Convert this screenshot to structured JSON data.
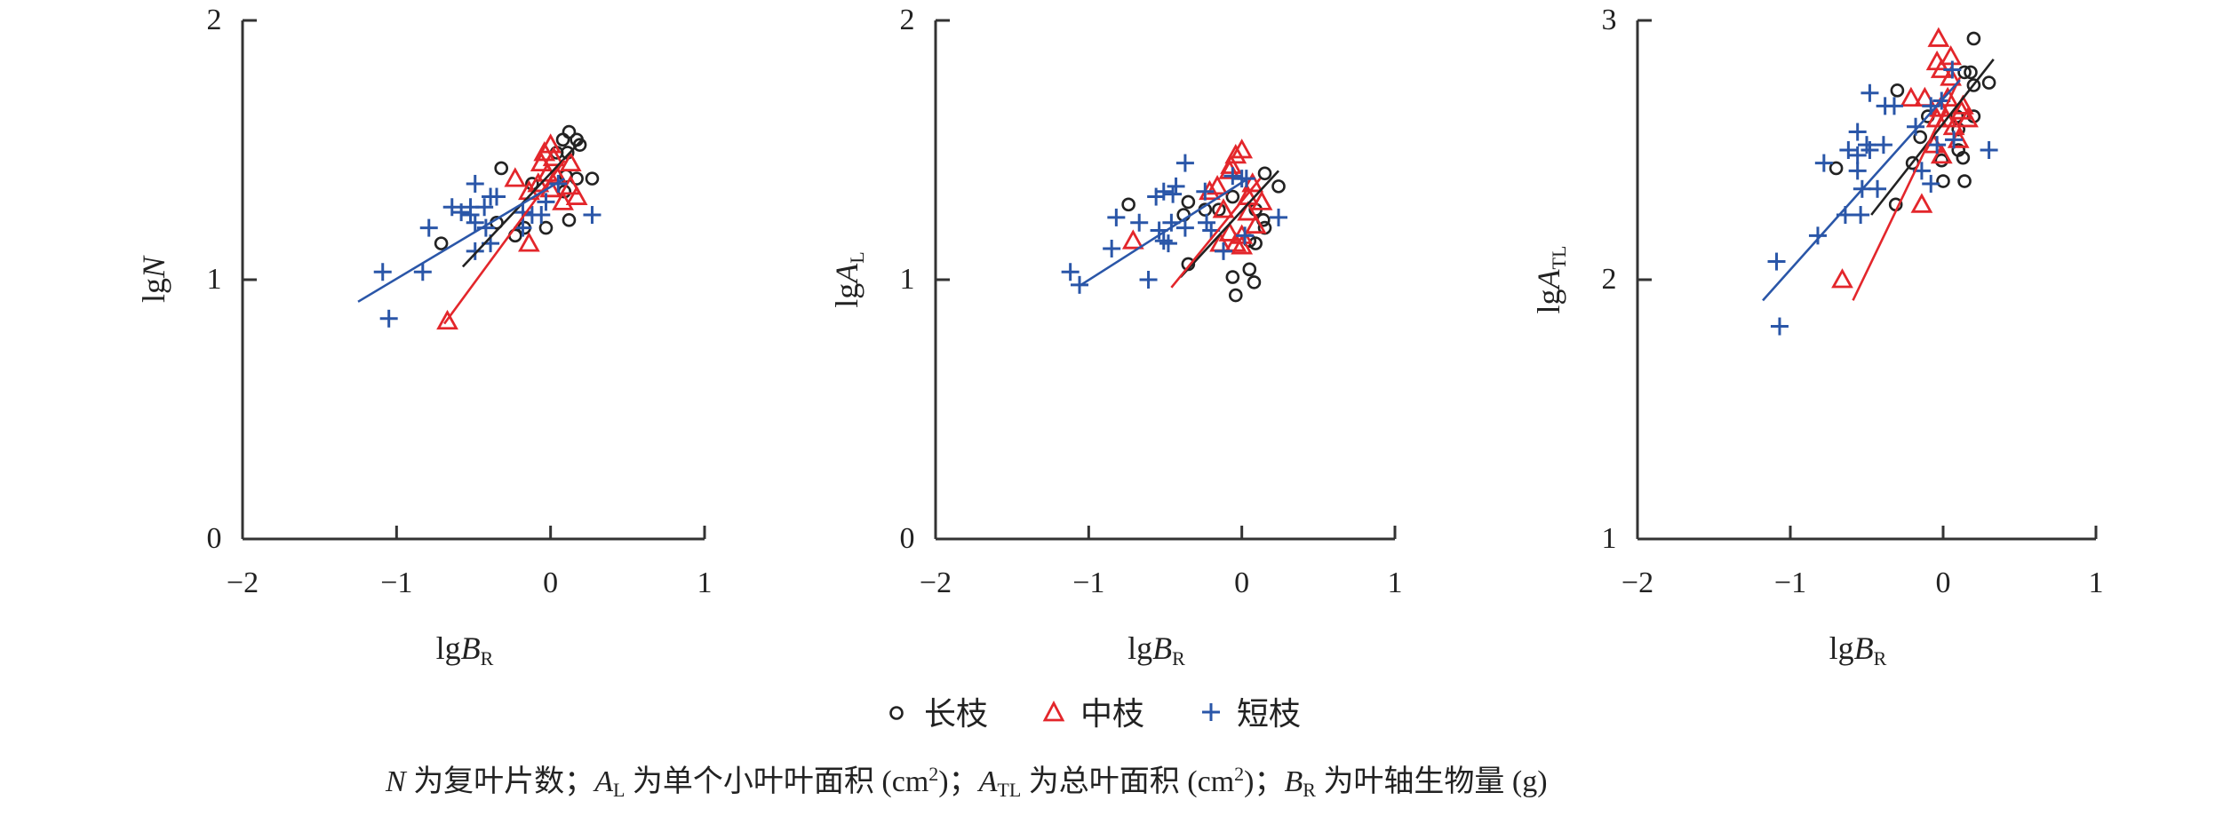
{
  "colors": {
    "long": "#222222",
    "mid": "#e3262b",
    "short": "#2a56a8",
    "axis": "#333333"
  },
  "legend": {
    "long": "长枝",
    "mid": "中枝",
    "short": "短枝"
  },
  "caption": {
    "n_var": "N",
    "n_text": " 为复叶片数；",
    "al_var": "A",
    "al_sub": "L",
    "al_text": " 为单个小叶叶面积 (cm",
    "al_sup": "2",
    "al_end": ")；",
    "atl_var": "A",
    "atl_sub": "TL",
    "atl_text": " 为总叶面积 (cm",
    "atl_sup": "2",
    "atl_end": ")；",
    "br_var": "B",
    "br_sub": "R",
    "br_text": " 为叶轴生物量 (g)"
  },
  "chart_data": [
    {
      "type": "scatter",
      "xlabel": {
        "prefix": "lg",
        "var": "B",
        "sub": "R"
      },
      "ylabel": {
        "prefix": "lg",
        "var": "N",
        "sub": ""
      },
      "xlim": [
        -2,
        1
      ],
      "ylim": [
        0,
        2
      ],
      "xticks": [
        "−2",
        "−1",
        "0",
        "1"
      ],
      "xtick_values": [
        -2,
        -1,
        0,
        1
      ],
      "yticks": [
        "0",
        "1",
        "2"
      ],
      "ytick_values": [
        0,
        1,
        2
      ],
      "series": [
        {
          "name": "长枝",
          "key": "long",
          "marker": "circle",
          "points": [
            [
              -0.32,
              1.43
            ],
            [
              -0.71,
              1.14
            ],
            [
              -0.35,
              1.22
            ],
            [
              -0.17,
              1.2
            ],
            [
              -0.23,
              1.17
            ],
            [
              -0.03,
              1.2
            ],
            [
              0.12,
              1.23
            ],
            [
              0.17,
              1.39
            ],
            [
              0.27,
              1.39
            ],
            [
              0.12,
              1.57
            ],
            [
              0.08,
              1.54
            ],
            [
              0.17,
              1.54
            ],
            [
              0.19,
              1.52
            ],
            [
              0.11,
              1.49
            ],
            [
              0.04,
              1.49
            ],
            [
              0.1,
              1.4
            ],
            [
              -0.12,
              1.37
            ],
            [
              0.09,
              1.34
            ]
          ],
          "fit": [
            [
              -0.57,
              1.05
            ],
            [
              0.205,
              1.54
            ]
          ]
        },
        {
          "name": "中枝",
          "key": "mid",
          "marker": "triangle",
          "points": [
            [
              -0.23,
              1.39
            ],
            [
              -0.14,
              1.14
            ],
            [
              -0.67,
              0.84
            ],
            [
              0.0,
              1.52
            ],
            [
              -0.04,
              1.49
            ],
            [
              0.02,
              1.47
            ],
            [
              -0.06,
              1.45
            ],
            [
              0.13,
              1.45
            ],
            [
              -0.02,
              1.41
            ],
            [
              0.04,
              1.4
            ],
            [
              -0.14,
              1.34
            ],
            [
              0.13,
              1.36
            ],
            [
              0.17,
              1.32
            ],
            [
              0.08,
              1.3
            ],
            [
              -0.08,
              1.37
            ],
            [
              0.0,
              1.35
            ]
          ],
          "fit": [
            [
              -0.69,
              0.83
            ],
            [
              0.09,
              1.46
            ]
          ]
        },
        {
          "name": "短枝",
          "key": "short",
          "marker": "plus",
          "points": [
            [
              -0.49,
              1.37
            ],
            [
              -0.39,
              1.32
            ],
            [
              -0.35,
              1.32
            ],
            [
              -0.64,
              1.28
            ],
            [
              -0.58,
              1.26
            ],
            [
              -0.52,
              1.28
            ],
            [
              -0.52,
              1.25
            ],
            [
              -0.43,
              1.28
            ],
            [
              -0.49,
              1.22
            ],
            [
              -0.42,
              1.2
            ],
            [
              -0.79,
              1.2
            ],
            [
              -0.18,
              1.26
            ],
            [
              -0.12,
              1.25
            ],
            [
              -0.06,
              1.25
            ],
            [
              -0.03,
              1.3
            ],
            [
              -0.18,
              1.2
            ],
            [
              -0.39,
              1.14
            ],
            [
              -0.49,
              1.11
            ],
            [
              -1.09,
              1.03
            ],
            [
              -0.83,
              1.03
            ],
            [
              -1.05,
              0.85
            ],
            [
              0.27,
              1.25
            ],
            [
              0.05,
              1.37
            ]
          ],
          "fit": [
            [
              -1.25,
              0.915
            ],
            [
              0.09,
              1.39
            ]
          ]
        }
      ]
    },
    {
      "type": "scatter",
      "xlabel": {
        "prefix": "lg",
        "var": "B",
        "sub": "R"
      },
      "ylabel": {
        "prefix": "lg",
        "var": "A",
        "sub": "L"
      },
      "xlim": [
        -2,
        1
      ],
      "ylim": [
        0,
        2
      ],
      "xticks": [
        "−2",
        "−1",
        "0",
        "1"
      ],
      "xtick_values": [
        -2,
        -1,
        0,
        1
      ],
      "yticks": [
        "0",
        "1",
        "2"
      ],
      "ytick_values": [
        0,
        1,
        2
      ],
      "series": [
        {
          "name": "长枝",
          "key": "long",
          "marker": "circle",
          "points": [
            [
              -0.74,
              1.29
            ],
            [
              -0.35,
              1.3
            ],
            [
              -0.38,
              1.25
            ],
            [
              -0.24,
              1.27
            ],
            [
              -0.15,
              1.27
            ],
            [
              -0.06,
              1.32
            ],
            [
              -0.35,
              1.06
            ],
            [
              0.15,
              1.41
            ],
            [
              0.24,
              1.36
            ],
            [
              0.09,
              1.27
            ],
            [
              0.14,
              1.23
            ],
            [
              0.15,
              1.2
            ],
            [
              0.05,
              1.15
            ],
            [
              0.09,
              1.14
            ],
            [
              0.05,
              1.04
            ],
            [
              -0.06,
              1.01
            ],
            [
              0.08,
              0.99
            ],
            [
              -0.04,
              0.94
            ]
          ],
          "fit": [
            [
              -0.4,
              1.01
            ],
            [
              0.24,
              1.42
            ]
          ]
        },
        {
          "name": "中枝",
          "key": "mid",
          "marker": "triangle",
          "points": [
            [
              -0.71,
              1.15
            ],
            [
              0.0,
              1.5
            ],
            [
              -0.04,
              1.48
            ],
            [
              -0.07,
              1.44
            ],
            [
              -0.08,
              1.42
            ],
            [
              -0.16,
              1.36
            ],
            [
              -0.21,
              1.34
            ],
            [
              0.07,
              1.37
            ],
            [
              0.04,
              1.32
            ],
            [
              0.13,
              1.3
            ],
            [
              -0.12,
              1.27
            ],
            [
              0.04,
              1.26
            ],
            [
              0.09,
              1.21
            ],
            [
              -0.08,
              1.18
            ],
            [
              0.0,
              1.17
            ],
            [
              -0.14,
              1.14
            ],
            [
              -0.04,
              1.14
            ],
            [
              0.0,
              1.13
            ]
          ],
          "fit": [
            [
              -0.46,
              0.97
            ],
            [
              0.12,
              1.39
            ]
          ]
        },
        {
          "name": "短枝",
          "key": "short",
          "marker": "plus",
          "points": [
            [
              -0.37,
              1.45
            ],
            [
              -1.12,
              1.03
            ],
            [
              -1.06,
              0.98
            ],
            [
              -0.85,
              1.12
            ],
            [
              -0.82,
              1.24
            ],
            [
              -0.67,
              1.22
            ],
            [
              -0.61,
              1.0
            ],
            [
              -0.56,
              1.32
            ],
            [
              -0.51,
              1.34
            ],
            [
              -0.45,
              1.33
            ],
            [
              -0.43,
              1.36
            ],
            [
              -0.54,
              1.19
            ],
            [
              -0.51,
              1.15
            ],
            [
              -0.48,
              1.14
            ],
            [
              -0.46,
              1.22
            ],
            [
              -0.37,
              1.2
            ],
            [
              -0.24,
              1.34
            ],
            [
              -0.23,
              1.22
            ],
            [
              -0.2,
              1.19
            ],
            [
              -0.12,
              1.11
            ],
            [
              -0.06,
              1.4
            ],
            [
              0.0,
              1.39
            ],
            [
              0.03,
              1.39
            ],
            [
              0.02,
              1.17
            ],
            [
              0.24,
              1.24
            ]
          ],
          "fit": [
            [
              -1.05,
              0.98
            ],
            [
              0.04,
              1.39
            ]
          ]
        }
      ]
    },
    {
      "type": "scatter",
      "xlabel": {
        "prefix": "lg",
        "var": "B",
        "sub": "R"
      },
      "ylabel": {
        "prefix": "lg",
        "var": "A",
        "sub": "TL"
      },
      "xlim": [
        -2,
        1
      ],
      "ylim": [
        1,
        3
      ],
      "xticks": [
        "−2",
        "−1",
        "0",
        "1"
      ],
      "xtick_values": [
        -2,
        -1,
        0,
        1
      ],
      "yticks": [
        "1",
        "2",
        "3"
      ],
      "ytick_values": [
        1,
        2,
        3
      ],
      "series": [
        {
          "name": "长枝",
          "key": "long",
          "marker": "circle",
          "points": [
            [
              -0.7,
              2.43
            ],
            [
              -0.3,
              2.73
            ],
            [
              -0.31,
              2.29
            ],
            [
              -0.2,
              2.45
            ],
            [
              -0.15,
              2.55
            ],
            [
              -0.1,
              2.63
            ],
            [
              0.0,
              2.38
            ],
            [
              0.14,
              2.38
            ],
            [
              -0.01,
              2.46
            ],
            [
              0.1,
              2.5
            ],
            [
              0.13,
              2.47
            ],
            [
              0.1,
              2.58
            ],
            [
              0.2,
              2.93
            ],
            [
              0.14,
              2.8
            ],
            [
              0.18,
              2.8
            ],
            [
              0.2,
              2.75
            ],
            [
              0.3,
              2.76
            ],
            [
              0.2,
              2.63
            ],
            [
              0.09,
              2.63
            ]
          ],
          "fit": [
            [
              -0.47,
              2.25
            ],
            [
              0.33,
              2.85
            ]
          ]
        },
        {
          "name": "中枝",
          "key": "mid",
          "marker": "triangle",
          "points": [
            [
              -0.66,
              2.0
            ],
            [
              -0.14,
              2.29
            ],
            [
              -0.03,
              2.93
            ],
            [
              -0.04,
              2.84
            ],
            [
              0.05,
              2.86
            ],
            [
              -0.01,
              2.81
            ],
            [
              0.05,
              2.78
            ],
            [
              -0.21,
              2.7
            ],
            [
              -0.12,
              2.7
            ],
            [
              0.03,
              2.7
            ],
            [
              0.13,
              2.67
            ],
            [
              -0.02,
              2.66
            ],
            [
              0.12,
              2.65
            ],
            [
              0.16,
              2.62
            ],
            [
              -0.04,
              2.62
            ],
            [
              0.02,
              2.62
            ],
            [
              0.07,
              2.59
            ],
            [
              -0.06,
              2.52
            ],
            [
              -0.01,
              2.48
            ],
            [
              0.1,
              2.54
            ]
          ],
          "fit": [
            [
              -0.59,
              1.92
            ],
            [
              0.11,
              2.78
            ]
          ]
        },
        {
          "name": "短枝",
          "key": "short",
          "marker": "plus",
          "points": [
            [
              -1.09,
              2.07
            ],
            [
              -0.82,
              2.17
            ],
            [
              -0.64,
              2.25
            ],
            [
              -0.54,
              2.25
            ],
            [
              -0.53,
              2.35
            ],
            [
              -0.43,
              2.35
            ],
            [
              -0.56,
              2.42
            ],
            [
              -0.78,
              2.45
            ],
            [
              -0.62,
              2.5
            ],
            [
              -0.56,
              2.48
            ],
            [
              -0.5,
              2.52
            ],
            [
              -0.48,
              2.5
            ],
            [
              -0.39,
              2.52
            ],
            [
              -0.56,
              2.57
            ],
            [
              -0.48,
              2.72
            ],
            [
              -0.38,
              2.67
            ],
            [
              -0.32,
              2.67
            ],
            [
              -0.18,
              2.59
            ],
            [
              -0.14,
              2.42
            ],
            [
              -0.08,
              2.37
            ],
            [
              -0.04,
              2.52
            ],
            [
              -0.08,
              2.67
            ],
            [
              -0.01,
              2.69
            ],
            [
              0.06,
              2.81
            ],
            [
              0.07,
              2.54
            ],
            [
              0.3,
              2.5
            ],
            [
              -1.07,
              1.82
            ]
          ],
          "fit": [
            [
              -1.18,
              1.92
            ],
            [
              0.11,
              2.77
            ]
          ]
        }
      ]
    }
  ]
}
